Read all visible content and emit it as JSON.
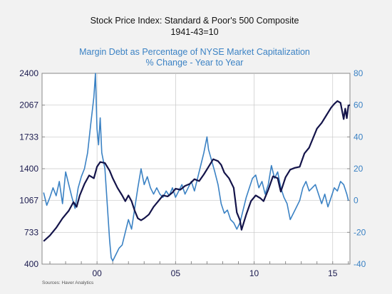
{
  "chart_data": {
    "type": "line",
    "title": "Stock Price Index: Standard & Poor's 500 Composite",
    "title_line2": "1941-43=10",
    "subtitle": "Margin Debt as Percentage of NYSE Market Capitalization",
    "subtitle_line2": "% Change - Year to Year",
    "source": "Sources:  Haver Analytics",
    "x_ticks": [
      {
        "x": 2000,
        "label": "00"
      },
      {
        "x": 2005,
        "label": "05"
      },
      {
        "x": 2010,
        "label": "10"
      },
      {
        "x": 2015,
        "label": "15"
      }
    ],
    "xlim": [
      1996.5,
      2016.1
    ],
    "grid": true,
    "colors": {
      "left_axis": "#1a1a4e",
      "right_axis": "#3b82c4",
      "background": "#ffffff",
      "grid": "#c8c8c8"
    },
    "left_axis": {
      "ticks": [
        "2400",
        "2067",
        "1733",
        "1400",
        "1067",
        "733",
        "400"
      ],
      "ylim": [
        400,
        2400
      ]
    },
    "right_axis": {
      "ticks": [
        "80",
        "60",
        "40",
        "20",
        "0",
        "-20",
        "-40"
      ],
      "ylim": [
        -40,
        80
      ]
    },
    "series": [
      {
        "axis": "left",
        "color": "#14144a",
        "points": [
          [
            1996.6,
            640
          ],
          [
            1997.0,
            700
          ],
          [
            1997.4,
            780
          ],
          [
            1997.8,
            880
          ],
          [
            1998.2,
            960
          ],
          [
            1998.5,
            1050
          ],
          [
            1998.7,
            1000
          ],
          [
            1998.9,
            1120
          ],
          [
            1999.2,
            1240
          ],
          [
            1999.5,
            1330
          ],
          [
            1999.8,
            1300
          ],
          [
            2000.0,
            1420
          ],
          [
            2000.2,
            1470
          ],
          [
            2000.5,
            1460
          ],
          [
            2000.8,
            1380
          ],
          [
            2001.0,
            1300
          ],
          [
            2001.3,
            1200
          ],
          [
            2001.6,
            1120
          ],
          [
            2001.8,
            1060
          ],
          [
            2002.0,
            1120
          ],
          [
            2002.2,
            1060
          ],
          [
            2002.4,
            960
          ],
          [
            2002.6,
            880
          ],
          [
            2002.8,
            860
          ],
          [
            2003.0,
            880
          ],
          [
            2003.3,
            920
          ],
          [
            2003.6,
            1000
          ],
          [
            2003.9,
            1060
          ],
          [
            2004.2,
            1120
          ],
          [
            2004.5,
            1110
          ],
          [
            2004.8,
            1150
          ],
          [
            2005.0,
            1190
          ],
          [
            2005.3,
            1180
          ],
          [
            2005.6,
            1220
          ],
          [
            2005.9,
            1240
          ],
          [
            2006.2,
            1290
          ],
          [
            2006.5,
            1270
          ],
          [
            2006.8,
            1340
          ],
          [
            2007.1,
            1420
          ],
          [
            2007.4,
            1500
          ],
          [
            2007.7,
            1480
          ],
          [
            2007.9,
            1440
          ],
          [
            2008.1,
            1360
          ],
          [
            2008.4,
            1300
          ],
          [
            2008.7,
            1200
          ],
          [
            2008.9,
            940
          ],
          [
            2009.1,
            860
          ],
          [
            2009.2,
            760
          ],
          [
            2009.5,
            920
          ],
          [
            2009.8,
            1060
          ],
          [
            2010.1,
            1120
          ],
          [
            2010.4,
            1090
          ],
          [
            2010.6,
            1060
          ],
          [
            2010.9,
            1180
          ],
          [
            2011.2,
            1320
          ],
          [
            2011.5,
            1300
          ],
          [
            2011.7,
            1160
          ],
          [
            2012.0,
            1310
          ],
          [
            2012.3,
            1390
          ],
          [
            2012.6,
            1410
          ],
          [
            2012.9,
            1420
          ],
          [
            2013.2,
            1560
          ],
          [
            2013.5,
            1620
          ],
          [
            2013.8,
            1740
          ],
          [
            2014.0,
            1820
          ],
          [
            2014.3,
            1880
          ],
          [
            2014.6,
            1960
          ],
          [
            2014.9,
            2040
          ],
          [
            2015.1,
            2080
          ],
          [
            2015.3,
            2110
          ],
          [
            2015.5,
            2090
          ],
          [
            2015.7,
            1920
          ],
          [
            2015.8,
            2030
          ],
          [
            2015.9,
            1930
          ],
          [
            2016.0,
            2060
          ],
          [
            2016.1,
            2070
          ]
        ]
      },
      {
        "axis": "right",
        "color": "#3b82c4",
        "points": [
          [
            1996.6,
            5
          ],
          [
            1996.8,
            -3
          ],
          [
            1997.0,
            2
          ],
          [
            1997.2,
            8
          ],
          [
            1997.4,
            3
          ],
          [
            1997.6,
            12
          ],
          [
            1997.8,
            -2
          ],
          [
            1998.0,
            18
          ],
          [
            1998.2,
            10
          ],
          [
            1998.4,
            2
          ],
          [
            1998.6,
            -5
          ],
          [
            1998.8,
            8
          ],
          [
            1999.0,
            15
          ],
          [
            1999.2,
            20
          ],
          [
            1999.4,
            30
          ],
          [
            1999.6,
            48
          ],
          [
            1999.8,
            65
          ],
          [
            1999.9,
            80
          ],
          [
            2000.0,
            45
          ],
          [
            2000.1,
            35
          ],
          [
            2000.2,
            52
          ],
          [
            2000.3,
            30
          ],
          [
            2000.5,
            20
          ],
          [
            2000.7,
            -10
          ],
          [
            2000.8,
            -25
          ],
          [
            2000.9,
            -36
          ],
          [
            2001.0,
            -38
          ],
          [
            2001.2,
            -34
          ],
          [
            2001.4,
            -30
          ],
          [
            2001.6,
            -28
          ],
          [
            2001.8,
            -20
          ],
          [
            2002.0,
            -12
          ],
          [
            2002.2,
            -18
          ],
          [
            2002.4,
            -5
          ],
          [
            2002.6,
            8
          ],
          [
            2002.8,
            20
          ],
          [
            2003.0,
            10
          ],
          [
            2003.2,
            15
          ],
          [
            2003.4,
            8
          ],
          [
            2003.6,
            4
          ],
          [
            2003.8,
            8
          ],
          [
            2004.0,
            4
          ],
          [
            2004.2,
            2
          ],
          [
            2004.4,
            6
          ],
          [
            2004.6,
            3
          ],
          [
            2004.8,
            8
          ],
          [
            2005.0,
            2
          ],
          [
            2005.2,
            6
          ],
          [
            2005.4,
            10
          ],
          [
            2005.6,
            4
          ],
          [
            2005.8,
            8
          ],
          [
            2006.0,
            12
          ],
          [
            2006.2,
            6
          ],
          [
            2006.4,
            14
          ],
          [
            2006.6,
            22
          ],
          [
            2006.8,
            30
          ],
          [
            2007.0,
            40
          ],
          [
            2007.1,
            32
          ],
          [
            2007.3,
            25
          ],
          [
            2007.5,
            18
          ],
          [
            2007.7,
            10
          ],
          [
            2007.9,
            -2
          ],
          [
            2008.1,
            -8
          ],
          [
            2008.3,
            -6
          ],
          [
            2008.5,
            -12
          ],
          [
            2008.7,
            -14
          ],
          [
            2008.9,
            -18
          ],
          [
            2009.1,
            -14
          ],
          [
            2009.3,
            -6
          ],
          [
            2009.5,
            2
          ],
          [
            2009.7,
            8
          ],
          [
            2009.9,
            14
          ],
          [
            2010.1,
            16
          ],
          [
            2010.3,
            8
          ],
          [
            2010.5,
            12
          ],
          [
            2010.7,
            4
          ],
          [
            2010.9,
            10
          ],
          [
            2011.1,
            22
          ],
          [
            2011.3,
            14
          ],
          [
            2011.5,
            18
          ],
          [
            2011.7,
            8
          ],
          [
            2011.9,
            2
          ],
          [
            2012.1,
            -2
          ],
          [
            2012.3,
            -12
          ],
          [
            2012.5,
            -8
          ],
          [
            2012.7,
            -4
          ],
          [
            2012.9,
            0
          ],
          [
            2013.1,
            8
          ],
          [
            2013.3,
            12
          ],
          [
            2013.5,
            6
          ],
          [
            2013.7,
            8
          ],
          [
            2013.9,
            10
          ],
          [
            2014.1,
            4
          ],
          [
            2014.3,
            -2
          ],
          [
            2014.5,
            4
          ],
          [
            2014.7,
            -4
          ],
          [
            2014.9,
            2
          ],
          [
            2015.1,
            8
          ],
          [
            2015.3,
            6
          ],
          [
            2015.5,
            12
          ],
          [
            2015.7,
            10
          ],
          [
            2015.9,
            4
          ],
          [
            2016.0,
            0
          ]
        ]
      }
    ]
  }
}
